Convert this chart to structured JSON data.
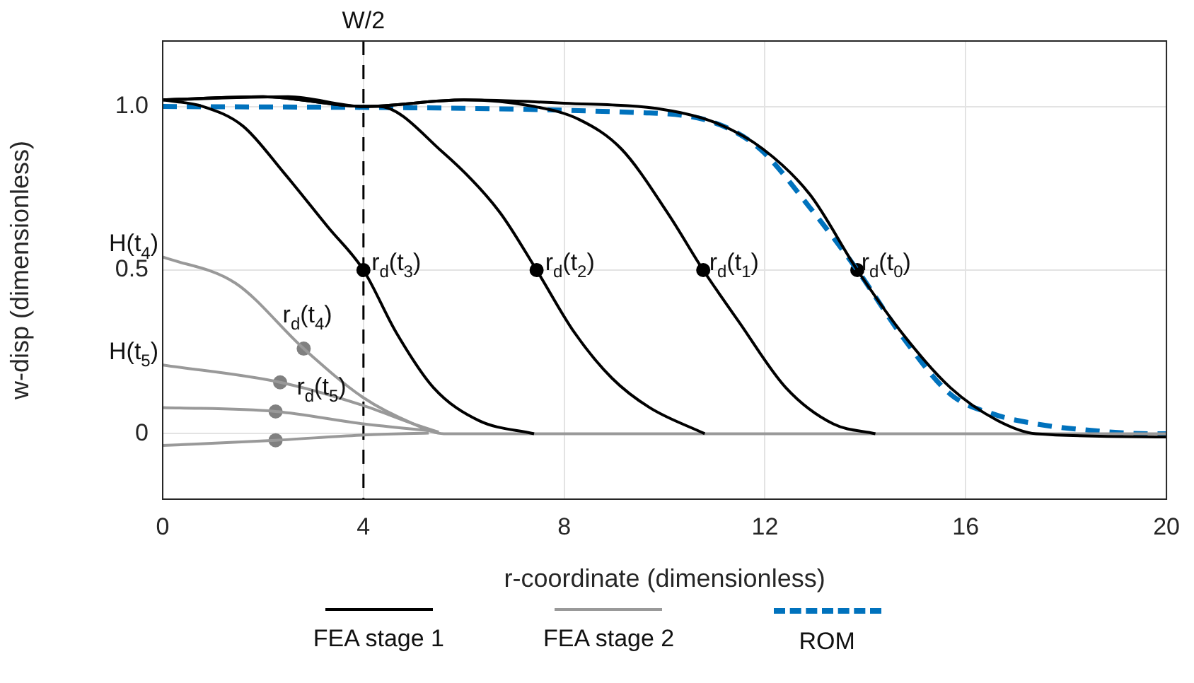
{
  "chart_data": {
    "type": "line",
    "xlabel": "r-coordinate (dimensionless)",
    "ylabel": "w-disp (dimensionless)",
    "xlim": [
      0,
      20
    ],
    "xticks": [
      0,
      4,
      8,
      12,
      16,
      20
    ],
    "ylim": [
      -0.2,
      1.2
    ],
    "yticks": [
      0,
      0.5,
      {
        "value": 1,
        "label": "1.0"
      }
    ],
    "grid": true,
    "legend": "bottom",
    "marker": "none",
    "line_style": "solid",
    "series": [
      {
        "name": "FEA stage 1",
        "color": "#000000",
        "x": [
          0,
          0.8,
          1.6,
          2.4,
          3.3,
          4,
          4.65,
          5.4,
          6.3,
          7.4
        ],
        "values": [
          1.02,
          1.0,
          0.94,
          0.8,
          0.63,
          0.5,
          0.31,
          0.14,
          0.04,
          0
        ]
      },
      {
        "color": "#000000",
        "x": [
          0,
          2,
          4,
          4.3,
          5.58,
          6.7,
          7.45,
          8.2,
          8.95,
          9.7,
          10.8
        ],
        "values": [
          1.02,
          1.03,
          1.0,
          1.0,
          0.86,
          0.68,
          0.5,
          0.31,
          0.17,
          0.08,
          0
        ]
      },
      {
        "color": "#000000",
        "x": [
          0,
          2.5,
          4,
          6,
          7.4,
          8.3,
          9.14,
          10.08,
          10.77,
          11.49,
          12.42,
          13.36,
          14.2
        ],
        "values": [
          1.02,
          1.03,
          1.0,
          1.02,
          1.0,
          0.96,
          0.87,
          0.67,
          0.5,
          0.34,
          0.14,
          0.03,
          0
        ]
      },
      {
        "color": "#000000",
        "x": [
          0,
          2,
          4,
          6,
          8,
          10,
          11.02,
          11.96,
          12.9,
          13.84,
          14.77,
          15.7,
          16.64,
          17.4,
          20
        ],
        "values": [
          1.02,
          1.03,
          1.0,
          1.02,
          1.01,
          0.99,
          0.95,
          0.87,
          0.73,
          0.5,
          0.3,
          0.14,
          0.04,
          0,
          -0.01
        ]
      },
      {
        "name": "FEA stage 2",
        "color": "#999999",
        "x": [
          0,
          1.45,
          2.81,
          4,
          5,
          5.6,
          20
        ],
        "values": [
          0.54,
          0.46,
          0.26,
          0.11,
          0.03,
          0,
          0
        ]
      },
      {
        "color": "#999999",
        "x": [
          0,
          2.34,
          4,
          5,
          5.5
        ],
        "values": [
          0.21,
          0.157,
          0.086,
          0.03,
          0.005
        ]
      },
      {
        "color": "#999999",
        "x": [
          0,
          2.25,
          4,
          5.4
        ],
        "values": [
          0.08,
          0.068,
          0.03,
          0.008
        ]
      },
      {
        "color": "#999999",
        "x": [
          0,
          2.25,
          4,
          5.3
        ],
        "values": [
          -0.036,
          -0.02,
          -0.004,
          0.002
        ]
      },
      {
        "name": "ROM",
        "color": "#0072bd",
        "line_style": "dashed",
        "x": [
          0,
          9.7,
          11.0,
          11.9,
          12.9,
          13.84,
          14.77,
          15.7,
          16.55,
          17.4,
          18.5,
          19.7,
          20
        ],
        "values": [
          1.0,
          0.98,
          0.95,
          0.87,
          0.69,
          0.5,
          0.29,
          0.12,
          0.06,
          0.03,
          0.01,
          0,
          0
        ]
      },
      {
        "type": "scatter",
        "marker": "circle",
        "color": "#000000",
        "x": [
          4,
          7.45,
          10.77,
          13.84
        ],
        "values": [
          0.5,
          0.5,
          0.5,
          0.5
        ]
      },
      {
        "type": "scatter",
        "marker": "circle",
        "color": "#808080",
        "x": [
          2.81,
          2.34,
          2.25,
          2.25
        ],
        "values": [
          0.26,
          0.157,
          0.068,
          -0.02
        ]
      }
    ],
    "ref_lines": [
      {
        "axis": "x",
        "value": 4,
        "label": "W/2",
        "color": "#000000",
        "line_style": "dashed"
      }
    ],
    "annotations": [
      {
        "text": "r$_{d}$(t$_{3}$)",
        "x": 4.16,
        "y": 0.5
      },
      {
        "text": "r$_{d}$(t$_{2}$)",
        "x": 7.62,
        "y": 0.5
      },
      {
        "text": "r$_{d}$(t$_{1}$)",
        "x": 10.89,
        "y": 0.5
      },
      {
        "text": "r$_{d}$(t$_{0}$)",
        "x": 13.92,
        "y": 0.5
      },
      {
        "text": "r$_{d}$(t$_{4}$)",
        "x": 2.39,
        "y": 0.34
      },
      {
        "text": "r$_{d}$(t$_{5}$)",
        "x": 2.67,
        "y": 0.12
      },
      {
        "text": "H(t$_{4}$)",
        "x": 0,
        "y": 0.54
      },
      {
        "text": "H(t$_{5}$)",
        "x": 0,
        "y": 0.21
      }
    ]
  }
}
